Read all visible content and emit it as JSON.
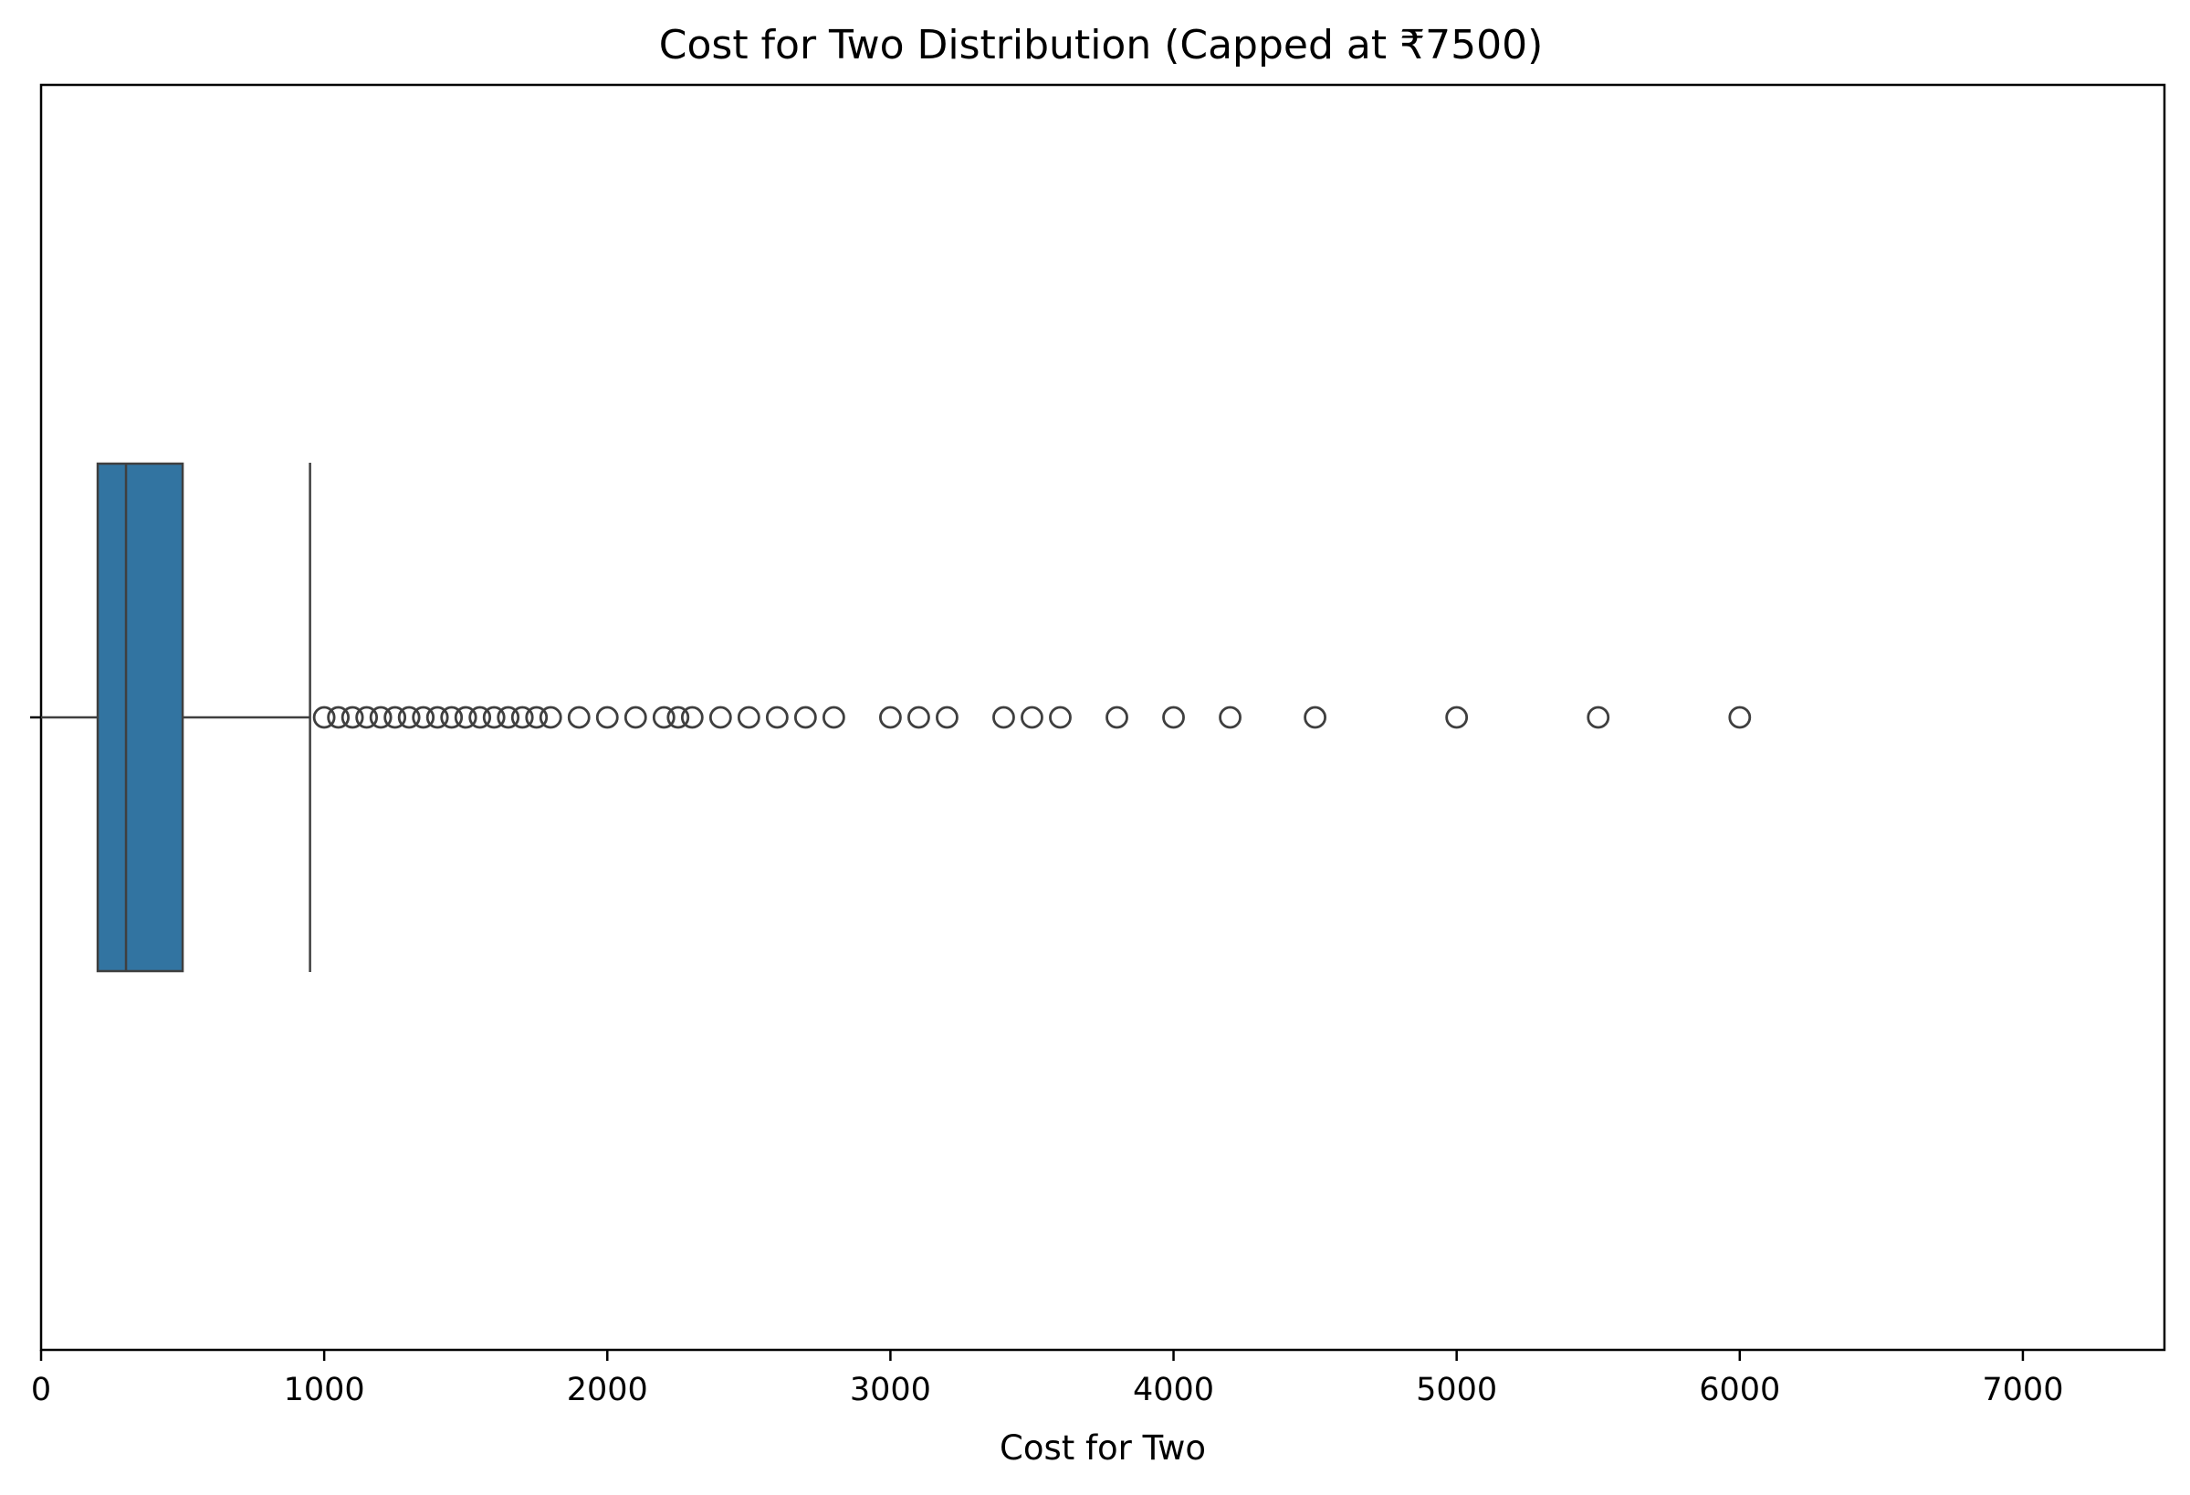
{
  "chart_data": {
    "type": "boxplot",
    "orientation": "horizontal",
    "title": "Cost for Two Distribution (Capped at ₹7500)",
    "xlabel": "Cost for Two",
    "ylabel": "",
    "xlim": [
      0,
      7500
    ],
    "xticks": [
      0,
      1000,
      2000,
      3000,
      4000,
      5000,
      6000,
      7000
    ],
    "xtick_labels": [
      "0",
      "1000",
      "2000",
      "3000",
      "4000",
      "5000",
      "6000",
      "7000"
    ],
    "grid": false,
    "box": {
      "whisker_low": 0,
      "q1": 200,
      "median": 300,
      "q3": 500,
      "whisker_high": 950
    },
    "outliers": [
      1000,
      1050,
      1100,
      1150,
      1200,
      1250,
      1300,
      1350,
      1400,
      1450,
      1500,
      1550,
      1600,
      1650,
      1700,
      1750,
      1800,
      1900,
      2000,
      2100,
      2200,
      2250,
      2300,
      2400,
      2500,
      2600,
      2700,
      2800,
      3000,
      3100,
      3200,
      3400,
      3500,
      3600,
      3800,
      4000,
      4200,
      4500,
      5000,
      5500,
      6000
    ],
    "colors": {
      "box_fill": "#3274a1",
      "line": "#3f3f3f",
      "axis": "#000000"
    }
  }
}
